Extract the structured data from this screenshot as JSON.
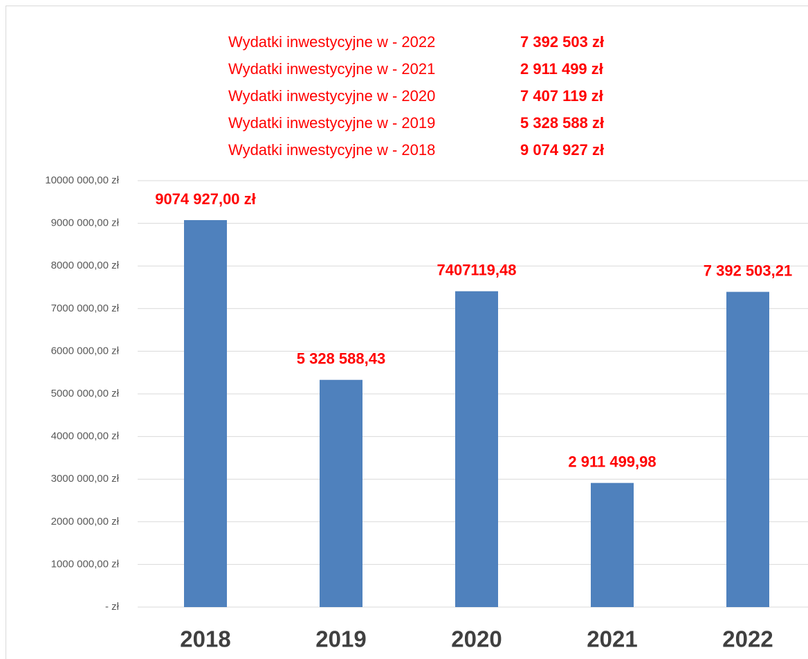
{
  "chart_data": {
    "type": "bar",
    "annotations": [
      {
        "label": "Wydatki inwestycyjne w - 2022",
        "amount": "7 392 503 zł"
      },
      {
        "label": "Wydatki inwestycyjne w - 2021",
        "amount": "2 911 499 zł"
      },
      {
        "label": "Wydatki inwestycyjne w - 2020",
        "amount": "7 407 119 zł"
      },
      {
        "label": "Wydatki inwestycyjne w - 2019",
        "amount": "5 328 588 zł"
      },
      {
        "label": "Wydatki inwestycyjne w - 2018",
        "amount": "9 074 927 zł"
      }
    ],
    "categories": [
      "2018",
      "2019",
      "2020",
      "2021",
      "2022"
    ],
    "values": [
      9074927.0,
      5328588.43,
      7407119.48,
      2911499.98,
      7392503.21
    ],
    "value_labels": [
      "9074 927,00 zł",
      "5 328 588,43",
      "7407119,48",
      "2 911 499,98",
      "7 392 503,21"
    ],
    "color": "#4f81bd",
    "label_color": "#ff0000",
    "ylim": [
      0,
      10000000
    ],
    "yticks": [
      {
        "value": 0,
        "label": "-   zł"
      },
      {
        "value": 1000000,
        "label": "1000 000,00 zł"
      },
      {
        "value": 2000000,
        "label": "2000 000,00 zł"
      },
      {
        "value": 3000000,
        "label": "3000 000,00 zł"
      },
      {
        "value": 4000000,
        "label": "4000 000,00 zł"
      },
      {
        "value": 5000000,
        "label": "5000 000,00 zł"
      },
      {
        "value": 6000000,
        "label": "6000 000,00 zł"
      },
      {
        "value": 7000000,
        "label": "7000 000,00 zł"
      },
      {
        "value": 8000000,
        "label": "8000 000,00 zł"
      },
      {
        "value": 9000000,
        "label": "9000 000,00 zł"
      },
      {
        "value": 10000000,
        "label": "10000 000,00 zł"
      }
    ],
    "grid": true
  }
}
